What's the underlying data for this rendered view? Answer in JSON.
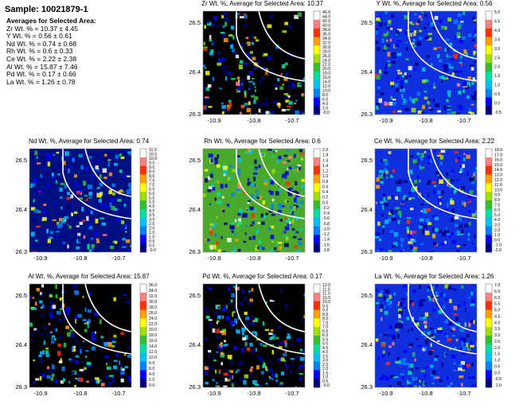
{
  "sample_title": "Sample: 10021879-1",
  "averages": {
    "heading": "Averages for Selected Area:",
    "lines": [
      "Zr Wt. % = 10.37 ± 4.45",
      "Y Wt. % = 0.56 ± 0.61",
      "Nd Wt. % = 0.74 ± 0.68",
      "Rh Wt. % = 0.6 ± 0.33",
      "Ce Wt. % = 2.22 ± 2.38",
      "Al Wt. % = 15.87 ± 7.46",
      "Pd Wt. % = 0.17 ± 0.66",
      "La Wt. % = 1.26 ± 0.78"
    ]
  },
  "chart_data": [
    {
      "type": "heatmap",
      "title": "Zr Wt. %, Average for Selected Area: 10.37",
      "x_ticks": [
        "-10.9",
        "-10.8",
        "-10.7"
      ],
      "y_ticks": [
        "26.5",
        "26.4",
        "26.3"
      ],
      "colorbar_ticks": [
        "46.0",
        "44.0",
        "42.0",
        "40.0",
        "38.0",
        "36.0",
        "34.0",
        "32.0",
        "30.0",
        "28.0",
        "26.0",
        "24.0",
        "22.0",
        "20.0",
        "18.0",
        "16.0",
        "14.0",
        "12.0",
        "10.0",
        "8.0",
        "6.0",
        "4.0",
        "2.0",
        "-0.0"
      ],
      "colorbar_range": [
        0,
        46
      ],
      "background": "#000000",
      "texture": "speckled"
    },
    {
      "type": "heatmap",
      "title": "Y Wt. %, Average for Selected Area: 0.56",
      "x_ticks": [
        "-10.9",
        "-10.8",
        "-10.7"
      ],
      "y_ticks": [
        "26.5",
        "26.4",
        "26.3"
      ],
      "colorbar_ticks": [
        "5.0",
        "4.5",
        "4.0",
        "3.5",
        "3.0",
        "2.5",
        "2.0",
        "1.5",
        "1.0",
        "0.5",
        "0.0",
        "-0.5"
      ],
      "colorbar_range": [
        -0.5,
        5
      ],
      "background": "#1030e0",
      "texture": "speckled"
    },
    {
      "type": "heatmap",
      "title": "Nd Wt. %, Average for Selected Area: 0.74",
      "x_ticks": [
        "-10.9",
        "-10.8",
        "-10.7"
      ],
      "y_ticks": [
        "26.5",
        "26.4",
        "26.3"
      ],
      "colorbar_ticks": [
        "11.0",
        "10.5",
        "10.0",
        "9.5",
        "9.0",
        "8.5",
        "8.0",
        "7.5",
        "7.0",
        "6.5",
        "6.0",
        "5.5",
        "5.0",
        "4.5",
        "4.0",
        "3.5",
        "3.0",
        "2.5",
        "2.0",
        "1.5",
        "1.0",
        "0.5",
        "0.0",
        "-0.0"
      ],
      "colorbar_range": [
        0,
        11
      ],
      "background": "#001080",
      "texture": "speckled"
    },
    {
      "type": "heatmap",
      "title": "Rh Wt. %, Average for Selected Area: 0.6",
      "x_ticks": [
        "-10.9",
        "-10.8",
        "-10.7"
      ],
      "y_ticks": [
        "26.5",
        "26.4",
        "26.3"
      ],
      "colorbar_ticks": [
        "2.0",
        "1.8",
        "1.6",
        "1.4",
        "1.2",
        "1.0",
        "0.8",
        "0.6",
        "0.4",
        "0.2",
        "0.0",
        "-0.2",
        "-0.4",
        "-0.6",
        "-0.8",
        "-1.0",
        "-1.2",
        "-1.4",
        "-1.6",
        "-1.8"
      ],
      "colorbar_range": [
        -1.8,
        2
      ],
      "background": "#4aa82a",
      "texture": "speckled"
    },
    {
      "type": "heatmap",
      "title": "Ce Wt. %, Average for Selected Area: 2.22",
      "x_ticks": [
        "-10.9",
        "-10.8",
        "-10.7"
      ],
      "y_ticks": [
        "26.5",
        "26.4",
        "26.3"
      ],
      "colorbar_ticks": [
        "18.0",
        "17.0",
        "16.0",
        "15.0",
        "14.0",
        "13.0",
        "12.0",
        "11.0",
        "10.0",
        "9.0",
        "8.0",
        "7.0",
        "6.0",
        "5.0",
        "4.0",
        "3.0",
        "2.0",
        "1.0",
        "0.0",
        "-1.0",
        "-2.0"
      ],
      "colorbar_range": [
        -2,
        18
      ],
      "background": "#1030e0",
      "texture": "speckled"
    },
    {
      "type": "heatmap",
      "title": "Al Wt. %, Average for Selected Area: 15.87",
      "x_ticks": [
        "-10.9",
        "-10.8",
        "-10.7"
      ],
      "y_ticks": [
        "26.5",
        "26.4",
        "26.3"
      ],
      "colorbar_ticks": [
        "36.0",
        "34.0",
        "32.0",
        "30.0",
        "28.0",
        "26.0",
        "24.0",
        "22.0",
        "20.0",
        "18.0",
        "16.0",
        "14.0",
        "12.0",
        "10.0",
        "8.0",
        "6.0",
        "4.0",
        "2.0",
        "0.0"
      ],
      "colorbar_range": [
        0,
        36
      ],
      "background": "#000000",
      "texture": "speckled"
    },
    {
      "type": "heatmap",
      "title": "Pd Wt. %, Average for Selected Area: 0.17",
      "x_ticks": [
        "-10.9",
        "-10.8",
        "-10.7"
      ],
      "y_ticks": [
        "26.5",
        "26.4",
        "26.3"
      ],
      "colorbar_ticks": [
        "12.0",
        "11.5",
        "11.0",
        "10.5",
        "10.0",
        "9.5",
        "9.0",
        "8.5",
        "8.0",
        "7.5",
        "7.0",
        "6.5",
        "6.0",
        "5.5",
        "5.0",
        "4.5",
        "4.0",
        "3.5",
        "3.0",
        "2.5",
        "2.0",
        "1.5",
        "1.0",
        "0.5",
        "-0.0"
      ],
      "colorbar_range": [
        0,
        12
      ],
      "background": "#000000",
      "texture": "speckled"
    },
    {
      "type": "heatmap",
      "title": "La Wt. %, Average for Selected Area: 1.26",
      "x_ticks": [
        "-10.9",
        "-10.8",
        "-10.7"
      ],
      "y_ticks": [
        "26.5",
        "26.4",
        "26.3"
      ],
      "colorbar_ticks": [
        "7.0",
        "6.5",
        "6.0",
        "5.5",
        "5.0",
        "4.5",
        "4.0",
        "3.5",
        "3.0",
        "2.5",
        "2.0",
        "1.5",
        "1.0",
        "0.5",
        "0.0",
        "-0.5",
        "-1.0"
      ],
      "colorbar_range": [
        -1,
        7
      ],
      "background": "#1030e0",
      "texture": "speckled"
    }
  ]
}
